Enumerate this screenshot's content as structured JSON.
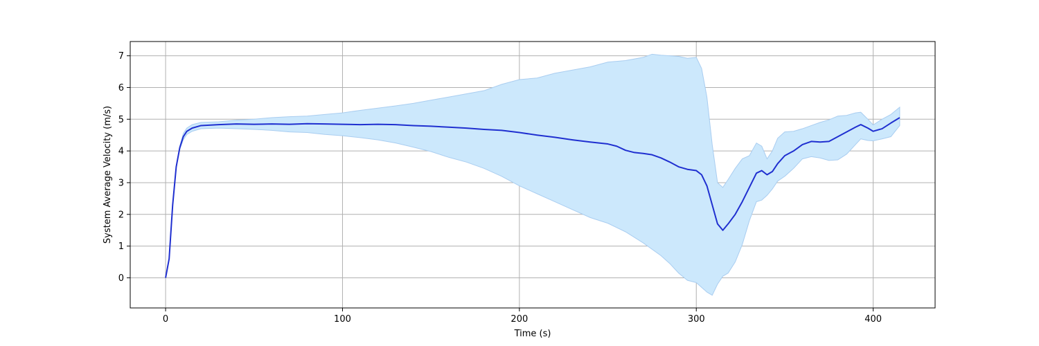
{
  "chart_data": {
    "type": "line",
    "title": "",
    "xlabel": "Time (s)",
    "ylabel": "System Average Velocity (m/s)",
    "xlim": [
      -20,
      435
    ],
    "ylim": [
      -0.95,
      7.45
    ],
    "xticks": [
      0,
      100,
      200,
      300,
      400
    ],
    "yticks": [
      0,
      1,
      2,
      3,
      4,
      5,
      6,
      7
    ],
    "xtick_labels": [
      "0",
      "100",
      "200",
      "300",
      "400"
    ],
    "ytick_labels": [
      "0",
      "1",
      "2",
      "3",
      "4",
      "5",
      "6",
      "7"
    ],
    "grid": true,
    "legend": "none",
    "colors": {
      "line": "#1f2fd0",
      "band_fill": "#cce8fc",
      "band_edge": "#a9cdf0",
      "grid": "#b0b0b0"
    },
    "series": [
      {
        "values": [
          [
            0,
            0.0
          ],
          [
            2,
            0.6
          ],
          [
            4,
            2.3
          ],
          [
            6,
            3.5
          ],
          [
            8,
            4.1
          ],
          [
            10,
            4.45
          ],
          [
            12,
            4.62
          ],
          [
            15,
            4.72
          ],
          [
            20,
            4.8
          ],
          [
            30,
            4.83
          ],
          [
            40,
            4.85
          ],
          [
            50,
            4.84
          ],
          [
            60,
            4.85
          ],
          [
            70,
            4.84
          ],
          [
            80,
            4.86
          ],
          [
            90,
            4.85
          ],
          [
            100,
            4.84
          ],
          [
            110,
            4.83
          ],
          [
            120,
            4.84
          ],
          [
            130,
            4.83
          ],
          [
            140,
            4.8
          ],
          [
            150,
            4.78
          ],
          [
            160,
            4.75
          ],
          [
            170,
            4.72
          ],
          [
            180,
            4.68
          ],
          [
            190,
            4.65
          ],
          [
            200,
            4.58
          ],
          [
            210,
            4.5
          ],
          [
            220,
            4.43
          ],
          [
            230,
            4.35
          ],
          [
            240,
            4.28
          ],
          [
            250,
            4.22
          ],
          [
            255,
            4.15
          ],
          [
            260,
            4.02
          ],
          [
            265,
            3.95
          ],
          [
            270,
            3.92
          ],
          [
            275,
            3.88
          ],
          [
            280,
            3.78
          ],
          [
            285,
            3.65
          ],
          [
            290,
            3.5
          ],
          [
            295,
            3.42
          ],
          [
            300,
            3.38
          ],
          [
            303,
            3.25
          ],
          [
            306,
            2.9
          ],
          [
            309,
            2.3
          ],
          [
            312,
            1.7
          ],
          [
            315,
            1.5
          ],
          [
            318,
            1.7
          ],
          [
            322,
            2.0
          ],
          [
            326,
            2.4
          ],
          [
            330,
            2.85
          ],
          [
            334,
            3.3
          ],
          [
            337,
            3.38
          ],
          [
            340,
            3.25
          ],
          [
            343,
            3.35
          ],
          [
            346,
            3.6
          ],
          [
            350,
            3.85
          ],
          [
            355,
            4.0
          ],
          [
            360,
            4.2
          ],
          [
            365,
            4.3
          ],
          [
            370,
            4.28
          ],
          [
            375,
            4.3
          ],
          [
            380,
            4.45
          ],
          [
            385,
            4.6
          ],
          [
            390,
            4.75
          ],
          [
            393,
            4.83
          ],
          [
            397,
            4.72
          ],
          [
            400,
            4.62
          ],
          [
            405,
            4.7
          ],
          [
            410,
            4.88
          ],
          [
            415,
            5.05
          ]
        ],
        "upper": [
          [
            0,
            0.0
          ],
          [
            2,
            0.6
          ],
          [
            4,
            2.3
          ],
          [
            6,
            3.5
          ],
          [
            8,
            4.15
          ],
          [
            10,
            4.55
          ],
          [
            12,
            4.72
          ],
          [
            15,
            4.83
          ],
          [
            20,
            4.9
          ],
          [
            30,
            4.92
          ],
          [
            40,
            4.97
          ],
          [
            50,
            5.0
          ],
          [
            60,
            5.05
          ],
          [
            70,
            5.08
          ],
          [
            80,
            5.1
          ],
          [
            90,
            5.15
          ],
          [
            100,
            5.2
          ],
          [
            110,
            5.28
          ],
          [
            120,
            5.35
          ],
          [
            130,
            5.42
          ],
          [
            140,
            5.5
          ],
          [
            150,
            5.6
          ],
          [
            160,
            5.7
          ],
          [
            170,
            5.8
          ],
          [
            180,
            5.9
          ],
          [
            190,
            6.1
          ],
          [
            200,
            6.25
          ],
          [
            210,
            6.3
          ],
          [
            220,
            6.45
          ],
          [
            230,
            6.55
          ],
          [
            240,
            6.65
          ],
          [
            250,
            6.8
          ],
          [
            260,
            6.85
          ],
          [
            270,
            6.95
          ],
          [
            275,
            7.05
          ],
          [
            280,
            7.02
          ],
          [
            285,
            7.0
          ],
          [
            290,
            6.98
          ],
          [
            295,
            6.92
          ],
          [
            300,
            6.95
          ],
          [
            303,
            6.6
          ],
          [
            306,
            5.7
          ],
          [
            309,
            4.2
          ],
          [
            312,
            3.0
          ],
          [
            315,
            2.85
          ],
          [
            318,
            3.1
          ],
          [
            322,
            3.45
          ],
          [
            326,
            3.75
          ],
          [
            330,
            3.85
          ],
          [
            334,
            4.25
          ],
          [
            337,
            4.15
          ],
          [
            340,
            3.75
          ],
          [
            343,
            4.0
          ],
          [
            346,
            4.4
          ],
          [
            350,
            4.6
          ],
          [
            355,
            4.62
          ],
          [
            360,
            4.7
          ],
          [
            365,
            4.8
          ],
          [
            370,
            4.9
          ],
          [
            375,
            4.98
          ],
          [
            380,
            5.1
          ],
          [
            385,
            5.12
          ],
          [
            390,
            5.2
          ],
          [
            393,
            5.22
          ],
          [
            397,
            5.0
          ],
          [
            400,
            4.82
          ],
          [
            405,
            5.0
          ],
          [
            410,
            5.15
          ],
          [
            415,
            5.38
          ]
        ],
        "lower": [
          [
            0,
            0.0
          ],
          [
            2,
            0.6
          ],
          [
            4,
            2.3
          ],
          [
            6,
            3.5
          ],
          [
            8,
            4.05
          ],
          [
            10,
            4.35
          ],
          [
            12,
            4.52
          ],
          [
            15,
            4.62
          ],
          [
            20,
            4.7
          ],
          [
            30,
            4.72
          ],
          [
            40,
            4.7
          ],
          [
            50,
            4.68
          ],
          [
            60,
            4.65
          ],
          [
            70,
            4.6
          ],
          [
            80,
            4.58
          ],
          [
            90,
            4.52
          ],
          [
            100,
            4.48
          ],
          [
            110,
            4.42
          ],
          [
            120,
            4.35
          ],
          [
            130,
            4.25
          ],
          [
            140,
            4.12
          ],
          [
            150,
            3.98
          ],
          [
            160,
            3.8
          ],
          [
            170,
            3.65
          ],
          [
            180,
            3.45
          ],
          [
            190,
            3.2
          ],
          [
            200,
            2.9
          ],
          [
            210,
            2.65
          ],
          [
            220,
            2.4
          ],
          [
            230,
            2.15
          ],
          [
            240,
            1.9
          ],
          [
            250,
            1.72
          ],
          [
            260,
            1.45
          ],
          [
            270,
            1.1
          ],
          [
            280,
            0.7
          ],
          [
            285,
            0.45
          ],
          [
            290,
            0.15
          ],
          [
            295,
            -0.08
          ],
          [
            300,
            -0.15
          ],
          [
            303,
            -0.3
          ],
          [
            306,
            -0.45
          ],
          [
            309,
            -0.55
          ],
          [
            312,
            -0.2
          ],
          [
            315,
            0.05
          ],
          [
            318,
            0.15
          ],
          [
            322,
            0.5
          ],
          [
            326,
            1.05
          ],
          [
            330,
            1.8
          ],
          [
            334,
            2.4
          ],
          [
            337,
            2.45
          ],
          [
            340,
            2.6
          ],
          [
            343,
            2.8
          ],
          [
            346,
            3.05
          ],
          [
            350,
            3.2
          ],
          [
            355,
            3.45
          ],
          [
            360,
            3.75
          ],
          [
            365,
            3.82
          ],
          [
            370,
            3.78
          ],
          [
            375,
            3.7
          ],
          [
            380,
            3.72
          ],
          [
            385,
            3.9
          ],
          [
            390,
            4.2
          ],
          [
            393,
            4.38
          ],
          [
            397,
            4.33
          ],
          [
            400,
            4.32
          ],
          [
            405,
            4.38
          ],
          [
            410,
            4.45
          ],
          [
            415,
            4.8
          ]
        ]
      }
    ]
  }
}
